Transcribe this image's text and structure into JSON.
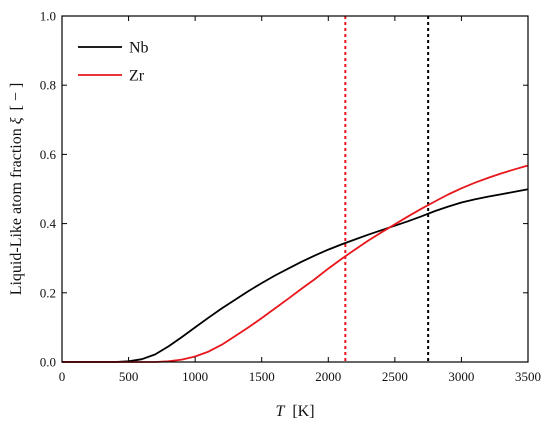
{
  "chart_data": {
    "type": "line",
    "title": "",
    "xlabel": {
      "symbol": "T",
      "unit": "[K]"
    },
    "ylabel": {
      "text": "Liquid-Like atom fraction ",
      "symbol": "ξ",
      "unit": "[ − ]"
    },
    "xlim": [
      0,
      3500
    ],
    "ylim": [
      0,
      1.0
    ],
    "x_ticks": [
      0,
      500,
      1000,
      1500,
      2000,
      2500,
      3000,
      3500
    ],
    "y_ticks": [
      0.0,
      0.2,
      0.4,
      0.6,
      0.8,
      1.0
    ],
    "y_tick_labels": [
      "0.0",
      "0.2",
      "0.4",
      "0.6",
      "0.8",
      "1.0"
    ],
    "grid": false,
    "legend_position": "top-left",
    "series": [
      {
        "name": "Nb",
        "color": "#000000",
        "x": [
          300,
          400,
          500,
          600,
          700,
          800,
          900,
          1000,
          1100,
          1200,
          1300,
          1400,
          1500,
          1600,
          1700,
          1800,
          1900,
          2000,
          2100,
          2200,
          2300,
          2400,
          2500,
          2600,
          2700,
          2800,
          2900,
          3000,
          3100,
          3200,
          3300,
          3400,
          3500
        ],
        "y": [
          0.0,
          0.0,
          0.002,
          0.008,
          0.022,
          0.045,
          0.072,
          0.1,
          0.128,
          0.155,
          0.18,
          0.205,
          0.228,
          0.25,
          0.27,
          0.29,
          0.308,
          0.325,
          0.34,
          0.354,
          0.368,
          0.381,
          0.394,
          0.407,
          0.421,
          0.436,
          0.449,
          0.461,
          0.47,
          0.478,
          0.485,
          0.492,
          0.499
        ]
      },
      {
        "name": "Zr",
        "color": "#e8171c",
        "x": [
          600,
          700,
          800,
          900,
          1000,
          1100,
          1200,
          1300,
          1400,
          1500,
          1600,
          1700,
          1800,
          1900,
          2000,
          2100,
          2200,
          2300,
          2400,
          2500,
          2600,
          2700,
          2800,
          2900,
          3000,
          3100,
          3200,
          3300,
          3400,
          3500
        ],
        "y": [
          0.0,
          0.0,
          0.002,
          0.007,
          0.016,
          0.03,
          0.05,
          0.075,
          0.1,
          0.127,
          0.155,
          0.183,
          0.212,
          0.24,
          0.27,
          0.298,
          0.325,
          0.351,
          0.375,
          0.398,
          0.421,
          0.443,
          0.464,
          0.484,
          0.502,
          0.518,
          0.532,
          0.545,
          0.557,
          0.568
        ]
      }
    ],
    "vlines": [
      {
        "x": 2128,
        "color": "#e8171c",
        "style": "dotted"
      },
      {
        "x": 2750,
        "color": "#000000",
        "style": "dotted"
      }
    ]
  }
}
